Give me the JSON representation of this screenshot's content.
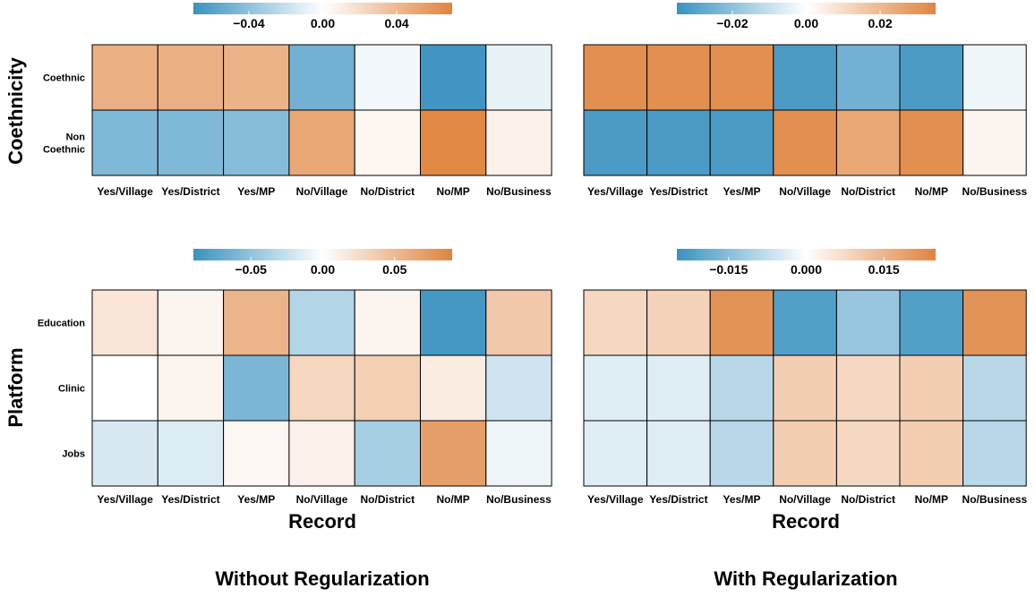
{
  "figure": {
    "row_labels": [
      "Coethnicity",
      "Platform"
    ],
    "x_axis_label": "Record",
    "column_titles": [
      "Without Regularization",
      "With Regularization"
    ]
  },
  "palette": {
    "negative": "#3a92c1",
    "midpoint": "#ffffff",
    "positive": "#e0843f"
  },
  "chart_data": [
    {
      "type": "heatmap",
      "panel": "Coethnicity / Without Regularization",
      "x": [
        "Yes/Village",
        "Yes/District",
        "Yes/MP",
        "No/Village",
        "No/District",
        "No/MP",
        "No/Business"
      ],
      "y": [
        "Coethnic",
        "Non\nCoethnic"
      ],
      "values": [
        [
          0.045,
          0.045,
          0.043,
          -0.05,
          -0.005,
          -0.068,
          -0.008
        ],
        [
          -0.045,
          -0.045,
          -0.043,
          0.05,
          0.005,
          0.068,
          0.008
        ]
      ],
      "colorbar": {
        "range": [
          -0.07,
          0.07
        ],
        "ticks": [
          -0.04,
          0.0,
          0.04
        ],
        "tick_labels": [
          "−0.04",
          "0.00",
          "0.04"
        ]
      },
      "xlabel": ""
    },
    {
      "type": "heatmap",
      "panel": "Coethnicity / With Regularization",
      "x": [
        "Yes/Village",
        "Yes/District",
        "Yes/MP",
        "No/Village",
        "No/District",
        "No/MP",
        "No/Business"
      ],
      "y": [
        "Coethnic",
        "Non\nCoethnic"
      ],
      "values": [
        [
          0.032,
          0.032,
          0.032,
          -0.032,
          -0.025,
          -0.032,
          -0.003
        ],
        [
          -0.032,
          -0.032,
          -0.032,
          0.032,
          0.025,
          0.032,
          0.003
        ]
      ],
      "colorbar": {
        "range": [
          -0.035,
          0.035
        ],
        "ticks": [
          -0.02,
          0.0,
          0.02
        ],
        "tick_labels": [
          "−0.02",
          "0.00",
          "0.02"
        ]
      },
      "xlabel": ""
    },
    {
      "type": "heatmap",
      "panel": "Platform / Without Regularization",
      "x": [
        "Yes/Village",
        "Yes/District",
        "Yes/MP",
        "No/Village",
        "No/District",
        "No/MP",
        "No/Business"
      ],
      "y": [
        "Education",
        "Clinic",
        "Jobs"
      ],
      "values": [
        [
          0.018,
          0.008,
          0.055,
          -0.035,
          0.008,
          -0.085,
          0.04
        ],
        [
          0.0,
          0.008,
          -0.06,
          0.03,
          0.035,
          0.014,
          -0.022
        ],
        [
          -0.018,
          -0.016,
          0.005,
          0.01,
          -0.04,
          0.07,
          -0.008
        ]
      ],
      "colorbar": {
        "range": [
          -0.09,
          0.09
        ],
        "ticks": [
          -0.05,
          0.0,
          0.05
        ],
        "tick_labels": [
          "−0.05",
          "0.00",
          "0.05"
        ]
      },
      "xlabel": "Record"
    },
    {
      "type": "heatmap",
      "panel": "Platform / With Regularization",
      "x": [
        "Yes/Village",
        "Yes/District",
        "Yes/MP",
        "No/Village",
        "No/District",
        "No/MP",
        "No/Business"
      ],
      "y": [
        "Education",
        "Clinic",
        "Jobs"
      ],
      "values": [
        [
          0.008,
          0.009,
          0.022,
          -0.022,
          -0.013,
          -0.022,
          0.022
        ],
        [
          -0.004,
          -0.004,
          -0.009,
          0.01,
          0.008,
          0.01,
          -0.009
        ],
        [
          -0.004,
          -0.004,
          -0.009,
          0.01,
          0.008,
          0.01,
          -0.009
        ]
      ],
      "colorbar": {
        "range": [
          -0.025,
          0.025
        ],
        "ticks": [
          -0.015,
          0.0,
          0.015
        ],
        "tick_labels": [
          "−0.015",
          "0.000",
          "0.015"
        ]
      },
      "xlabel": "Record"
    }
  ]
}
